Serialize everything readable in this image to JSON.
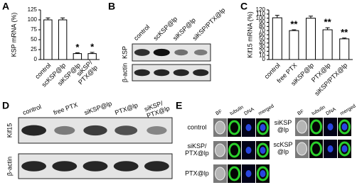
{
  "panel_letters": [
    "A",
    "B",
    "C",
    "D",
    "E"
  ],
  "chart_data": [
    {
      "type": "bar",
      "ylabel": "KSP mRNA (%)",
      "categories": [
        "control",
        "scKSP@lp",
        "siKSP@lp",
        "siKSP/\nPTX@lp"
      ],
      "values": [
        100,
        100,
        15,
        15
      ],
      "errors": [
        5,
        5,
        2,
        3
      ],
      "annotations": [
        null,
        null,
        "*",
        "*"
      ],
      "color": "#ffffff",
      "ylim": [
        0,
        125
      ],
      "yticks": [
        0,
        25,
        50,
        75,
        100,
        125
      ]
    },
    {
      "type": "bar",
      "ylabel": "Kif15 mRNA (%)",
      "categories": [
        "control",
        "free PTX",
        "siKSP@lp",
        "PTX@lp",
        "siKSP/PTX@lp"
      ],
      "values": [
        101,
        70,
        100,
        72,
        50
      ],
      "errors": [
        6,
        2,
        5,
        5,
        2
      ],
      "annotations": [
        null,
        "**",
        null,
        "**",
        "**"
      ],
      "color": "#ffffff",
      "ylim": [
        0,
        120
      ],
      "yticks": [
        0,
        10,
        20,
        30,
        40,
        50,
        60,
        70,
        80,
        90,
        100,
        110,
        120
      ]
    }
  ],
  "blots": [
    {
      "lanes": [
        "control",
        "scKSP@lp",
        "siKSP@lp",
        "siKSP/PTX@lp"
      ],
      "rows": [
        "KSP",
        "β-actin"
      ]
    },
    {
      "lanes": [
        "control",
        "free PTX",
        "siKSP@lp",
        "PTX@lp",
        "siKSP/\nPTX@lp"
      ],
      "rows": [
        "Kif15",
        "β-actin"
      ]
    }
  ],
  "microscopy": {
    "columns": [
      "BF",
      "tubulin",
      "DNA",
      "merged"
    ],
    "left_rows": [
      "control",
      "siKSP/\nPTX@lp",
      "PTX@lp"
    ],
    "right_rows": [
      "siKSP\n@lp",
      "scKSP\n@lp"
    ]
  }
}
